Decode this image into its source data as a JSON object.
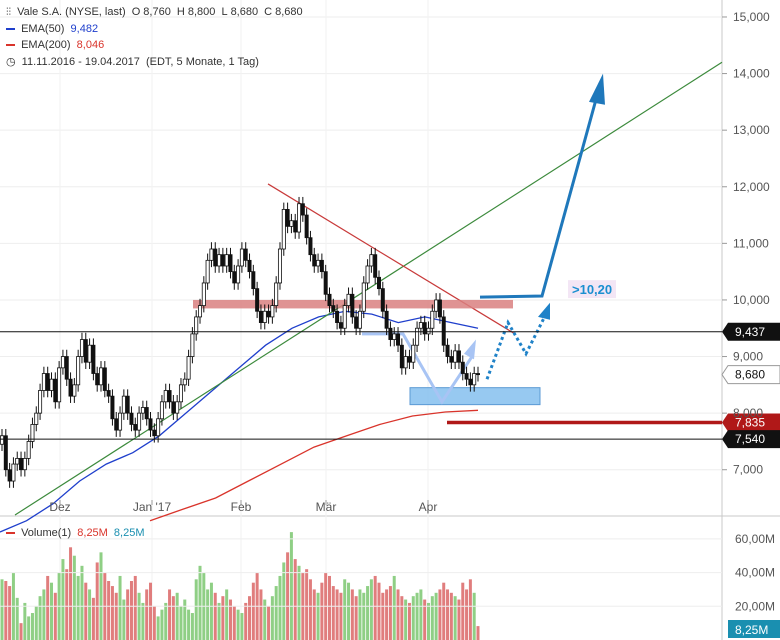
{
  "legend": {
    "instrument": "Vale S.A. (NYSE, last)",
    "ohlc": [
      {
        "key": "O",
        "value": "8,760"
      },
      {
        "key": "H",
        "value": "8,800"
      },
      {
        "key": "L",
        "value": "8,680"
      },
      {
        "key": "C",
        "value": "8,680"
      }
    ],
    "ema50": {
      "label": "EMA(50)",
      "value": "9,482",
      "color": "#1f3fcc"
    },
    "ema200": {
      "label": "EMA(200)",
      "value": "8,046",
      "color": "#d9342b"
    },
    "period": "11.11.2016 - 19.04.2017",
    "period_info": "(EDT, 5 Monate, 1 Tag)"
  },
  "volume_legend": {
    "label": "Volume(1)",
    "value1": "8,25M",
    "value2": "8,25M"
  },
  "chart_data": [
    {
      "type": "candlestick",
      "x_labels": [
        "Dez",
        "Jan '17",
        "Feb",
        "Mär",
        "Apr"
      ],
      "y_ticks": [
        "7,000",
        "8,000",
        "9,000",
        "10,000",
        "11,000",
        "12,000",
        "13,000",
        "14,000",
        "15,000"
      ],
      "ylim": [
        6.2,
        15.3
      ],
      "tick_values": [
        7,
        8,
        9,
        10,
        11,
        12,
        13,
        14,
        15
      ],
      "close": [
        7.6,
        7.0,
        6.8,
        7.1,
        7.2,
        7.0,
        7.2,
        7.5,
        7.8,
        8.0,
        8.4,
        8.7,
        8.4,
        8.6,
        8.2,
        8.8,
        9.0,
        8.6,
        8.3,
        8.5,
        9.0,
        9.3,
        8.9,
        9.2,
        8.7,
        8.5,
        8.8,
        8.4,
        8.3,
        7.9,
        7.7,
        8.0,
        8.3,
        8.0,
        7.8,
        7.7,
        8.0,
        8.1,
        7.9,
        7.7,
        7.6,
        7.9,
        8.2,
        8.4,
        8.2,
        8.0,
        8.2,
        8.5,
        8.6,
        9.0,
        9.4,
        9.7,
        9.9,
        10.3,
        10.7,
        10.9,
        10.6,
        10.8,
        10.6,
        10.8,
        10.5,
        10.3,
        10.6,
        10.9,
        10.7,
        10.5,
        10.2,
        9.8,
        9.6,
        9.8,
        9.7,
        9.9,
        10.3,
        10.9,
        11.6,
        11.3,
        11.4,
        11.2,
        11.7,
        11.5,
        11.1,
        10.8,
        10.6,
        10.7,
        10.5,
        10.1,
        9.9,
        9.8,
        9.6,
        9.5,
        9.9,
        10.1,
        9.7,
        9.5,
        9.8,
        10.3,
        10.6,
        10.8,
        10.4,
        10.2,
        9.8,
        9.5,
        9.3,
        9.4,
        9.2,
        8.8,
        9.0,
        8.9,
        9.2,
        9.5,
        9.6,
        9.4,
        9.5,
        9.8,
        10.0,
        9.7,
        9.2,
        9.0,
        8.9,
        9.1,
        8.9,
        8.7,
        8.6,
        8.5,
        8.7,
        8.68
      ],
      "horizontal_lines": [
        {
          "value": 9.437,
          "label": "9,437",
          "color": "#111111"
        },
        {
          "value": 7.835,
          "label": "7,835",
          "color": "#b01818"
        },
        {
          "value": 7.54,
          "label": "7,540",
          "color": "#111111"
        }
      ],
      "annotations": [
        {
          "text": ">10,20",
          "color": "#1a8fd0"
        }
      ],
      "ema50_series": [
        5.9,
        6.1,
        6.4,
        6.8,
        7.1,
        7.3,
        7.6,
        8.0,
        8.4,
        8.8,
        9.2,
        9.5,
        9.7,
        9.8,
        9.75,
        9.6,
        9.7,
        9.6,
        9.5
      ],
      "ema200_series": [
        6.1,
        6.3,
        6.5,
        6.8,
        7.1,
        7.4,
        7.6,
        7.8,
        7.95,
        8.02,
        8.05
      ]
    },
    {
      "type": "bar",
      "y_ticks": [
        "20,00M",
        "40,00M",
        "60,00M"
      ],
      "tick_values": [
        20,
        40,
        60
      ],
      "ylim": [
        0,
        70
      ],
      "current_label": "8,25M",
      "values": [
        36,
        35,
        32,
        40,
        25,
        10,
        22,
        14,
        16,
        20,
        26,
        30,
        38,
        34,
        28,
        40,
        48,
        42,
        55,
        50,
        38,
        44,
        34,
        30,
        25,
        46,
        52,
        40,
        35,
        32,
        28,
        38,
        24,
        30,
        35,
        38,
        28,
        22,
        30,
        34,
        20,
        14,
        18,
        22,
        30,
        26,
        28,
        20,
        24,
        18,
        16,
        36,
        44,
        40,
        30,
        34,
        28,
        22,
        26,
        30,
        24,
        20,
        18,
        16,
        22,
        26,
        34,
        40,
        30,
        24,
        20,
        26,
        32,
        38,
        46,
        52,
        64,
        48,
        44,
        40,
        42,
        36,
        30,
        28,
        34,
        40,
        38,
        32,
        30,
        28,
        36,
        34,
        30,
        26,
        30,
        28,
        32,
        36,
        38,
        34,
        28,
        30,
        32,
        38,
        30,
        26,
        24,
        22,
        26,
        28,
        30,
        24,
        22,
        26,
        28,
        30,
        34,
        30,
        28,
        26,
        24,
        34,
        30,
        36,
        28,
        8.25
      ],
      "colors": {
        "up": "#8fcf85",
        "down": "#e07d7d"
      }
    }
  ]
}
